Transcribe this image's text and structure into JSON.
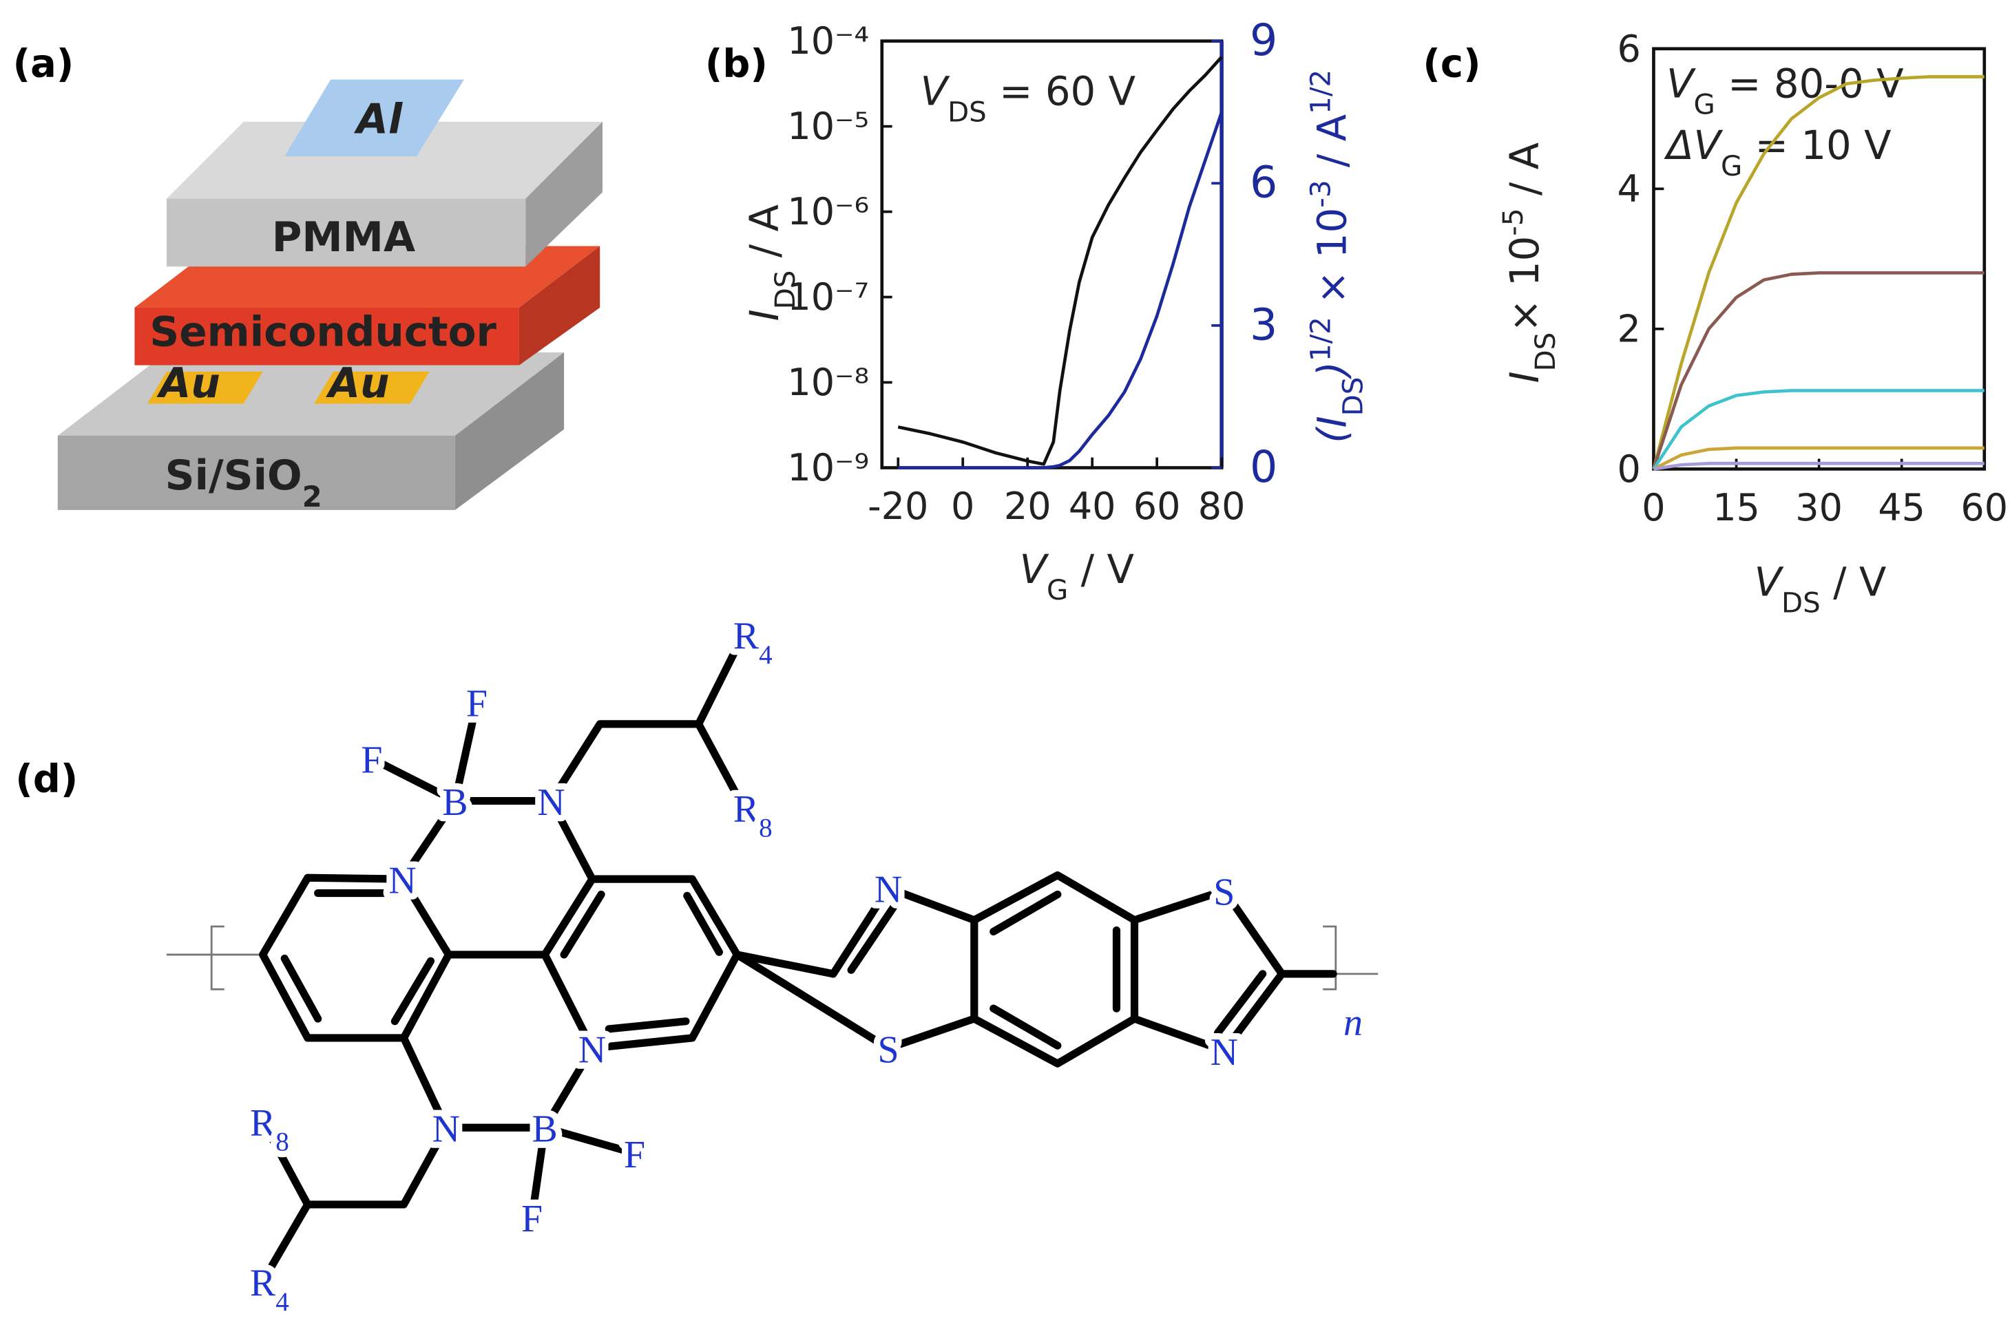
{
  "panel_labels": [
    "(a)",
    "(b)",
    "(c)",
    "(d)"
  ],
  "device": {
    "al": "Al",
    "pmma": "PMMA",
    "semiconductor": "Semiconductor",
    "au": [
      "Au",
      "Au"
    ],
    "substrate": [
      "Si/SiO",
      "2"
    ]
  },
  "chart_data": [
    {
      "type": "line",
      "yscale": "log",
      "x": [
        -20,
        -10,
        0,
        10,
        20,
        25,
        28,
        30,
        33,
        36,
        40,
        45,
        50,
        55,
        60,
        65,
        70,
        75,
        80
      ],
      "xlim": [
        -25,
        80
      ],
      "xticks": [
        -20,
        0,
        20,
        40,
        60,
        80
      ],
      "ylim": [
        1e-09,
        0.0001
      ],
      "yticks": [
        {
          "value": 1e-09,
          "label": "10⁻⁹"
        },
        {
          "value": 1e-08,
          "label": "10⁻⁸"
        },
        {
          "value": 1e-07,
          "label": "10⁻⁷"
        },
        {
          "value": 1e-06,
          "label": "10⁻⁶"
        },
        {
          "value": 1e-05,
          "label": "10⁻⁵"
        },
        {
          "value": 0.0001,
          "label": "10⁻⁴"
        }
      ],
      "y2lim": [
        0,
        9
      ],
      "y2ticks": [
        0,
        3,
        6,
        9
      ],
      "y2color": "#1c2a9c",
      "xlabel": [
        "V",
        "G",
        " / V"
      ],
      "ylabel": [
        "I",
        "DS",
        " / A"
      ],
      "y2label": [
        "(I",
        "DS",
        ")",
        "1/2",
        " × 10",
        "-3",
        " / A",
        "1/2"
      ],
      "annotation": [
        "V",
        "DS",
        " = 60 V"
      ],
      "series": [
        {
          "color": "#111111",
          "values": [
            3e-09,
            2.5e-09,
            2e-09,
            1.5e-09,
            1.2e-09,
            1.1e-09,
            2e-09,
            8e-09,
            4e-08,
            1.5e-07,
            5e-07,
            1.2e-06,
            2.5e-06,
            5e-06,
            9e-06,
            1.6e-05,
            2.6e-05,
            4e-05,
            6.5e-05
          ]
        },
        {
          "color": "#1c2a9c",
          "axis": "y2",
          "values": [
            0,
            0,
            0,
            0,
            0,
            0,
            0.02,
            0.05,
            0.15,
            0.35,
            0.7,
            1.1,
            1.6,
            2.3,
            3.2,
            4.3,
            5.5,
            6.5,
            7.5
          ]
        }
      ]
    },
    {
      "type": "line",
      "x": [
        0,
        5,
        10,
        15,
        20,
        25,
        30,
        35,
        40,
        45,
        50,
        55,
        60
      ],
      "xlim": [
        0,
        60
      ],
      "xticks": [
        0,
        15,
        30,
        45,
        60
      ],
      "ylim": [
        0,
        6
      ],
      "yticks": [
        0,
        2,
        4,
        6
      ],
      "xlabel": [
        "V",
        "DS",
        " / V"
      ],
      "ylabel": [
        "I",
        "DS",
        "× 10",
        "-5",
        " / A"
      ],
      "annotations": [
        [
          "V",
          "G",
          " = 80-0 V"
        ],
        [
          "ΔV",
          "G",
          " = 10 V"
        ]
      ],
      "series": [
        {
          "color": "#b8a62a",
          "values": [
            0,
            1.5,
            2.8,
            3.8,
            4.5,
            5.0,
            5.3,
            5.5,
            5.55,
            5.58,
            5.6,
            5.6,
            5.6
          ]
        },
        {
          "color": "#8a5a52",
          "values": [
            0,
            1.2,
            2.0,
            2.45,
            2.7,
            2.78,
            2.8,
            2.8,
            2.8,
            2.8,
            2.8,
            2.8,
            2.8
          ]
        },
        {
          "color": "#3cc3cc",
          "values": [
            0,
            0.6,
            0.9,
            1.05,
            1.1,
            1.12,
            1.12,
            1.12,
            1.12,
            1.12,
            1.12,
            1.12,
            1.12
          ]
        },
        {
          "color": "#c9a53a",
          "values": [
            0,
            0.2,
            0.28,
            0.3,
            0.3,
            0.3,
            0.3,
            0.3,
            0.3,
            0.3,
            0.3,
            0.3,
            0.3
          ]
        },
        {
          "color": "#a89ad8",
          "values": [
            0,
            0.06,
            0.08,
            0.08,
            0.08,
            0.08,
            0.08,
            0.08,
            0.08,
            0.08,
            0.08,
            0.08,
            0.08
          ]
        }
      ]
    }
  ],
  "structure": {
    "atoms": [
      "F",
      "F",
      "B",
      "N",
      "N",
      "N",
      "N",
      "B",
      "F",
      "F",
      "N",
      "S",
      "S",
      "N"
    ],
    "groups": [
      [
        "R",
        "4"
      ],
      [
        "R",
        "8"
      ],
      [
        "R",
        "8"
      ],
      [
        "R",
        "4"
      ]
    ],
    "repeat": "n"
  }
}
